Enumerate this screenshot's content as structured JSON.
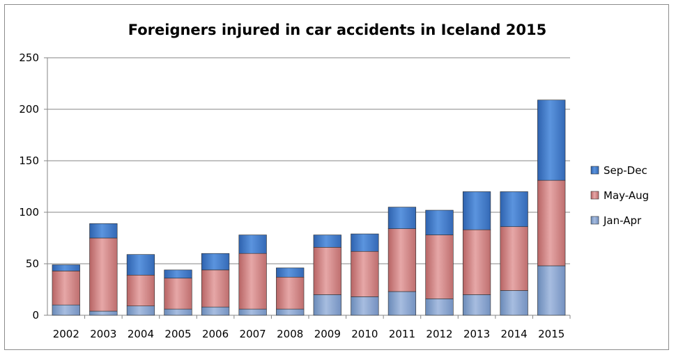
{
  "chart_data": {
    "type": "bar",
    "stacked": true,
    "title": "Foreigners injured in car accidents in Iceland 2015",
    "xlabel": "",
    "ylabel": "",
    "ylim": [
      0,
      250
    ],
    "yticks": [
      0,
      50,
      100,
      150,
      200,
      250
    ],
    "grid": true,
    "legend": "right",
    "categories": [
      "2002",
      "2003",
      "2004",
      "2005",
      "2006",
      "2007",
      "2008",
      "2009",
      "2010",
      "2011",
      "2012",
      "2013",
      "2014",
      "2015"
    ],
    "series": [
      {
        "name": "Jan-Apr",
        "color": "#7f9cc8",
        "values": [
          10,
          4,
          9,
          6,
          8,
          6,
          6,
          20,
          18,
          23,
          16,
          20,
          24,
          48
        ]
      },
      {
        "name": "May-Aug",
        "color": "#c87c7c",
        "values": [
          33,
          71,
          30,
          30,
          36,
          54,
          31,
          46,
          44,
          61,
          62,
          63,
          62,
          83
        ]
      },
      {
        "name": "Sep-Dec",
        "color": "#3a74c4",
        "values": [
          6,
          14,
          20,
          8,
          16,
          18,
          9,
          12,
          17,
          21,
          24,
          37,
          34,
          78
        ]
      }
    ]
  }
}
